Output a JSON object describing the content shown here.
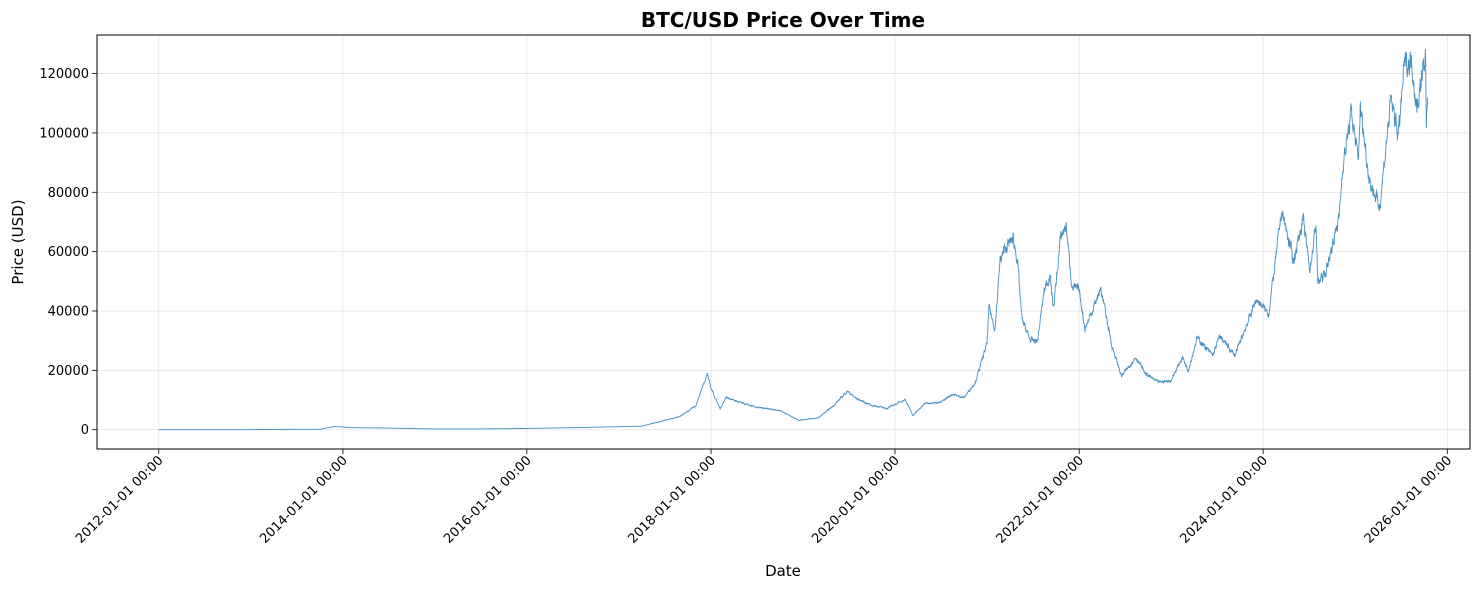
{
  "chart_data": {
    "type": "line",
    "title": "BTC/USD Price Over Time",
    "xlabel": "Date",
    "ylabel": "Price (USD)",
    "grid": true,
    "legend": "none",
    "xlim": [
      "2011-05-01",
      "2026-04-01"
    ],
    "ylim": [
      -6500,
      133000
    ],
    "x_ticks": [
      "2012-01-01 00:00",
      "2014-01-01 00:00",
      "2016-01-01 00:00",
      "2018-01-01 00:00",
      "2020-01-01 00:00",
      "2022-01-01 00:00",
      "2024-01-01 00:00",
      "2026-01-01 00:00"
    ],
    "y_ticks": [
      0,
      20000,
      40000,
      60000,
      80000,
      100000,
      120000
    ],
    "series": [
      {
        "color": "#1f77b4",
        "points": [
          [
            "2012-01-01",
            5
          ],
          [
            "2012-06-01",
            6
          ],
          [
            "2012-12-01",
            13
          ],
          [
            "2013-04-01",
            100
          ],
          [
            "2013-10-01",
            150
          ],
          [
            "2013-12-01",
            1100
          ],
          [
            "2014-02-01",
            700
          ],
          [
            "2014-06-01",
            600
          ],
          [
            "2015-01-01",
            250
          ],
          [
            "2015-06-01",
            250
          ],
          [
            "2016-01-01",
            430
          ],
          [
            "2016-06-01",
            650
          ],
          [
            "2017-01-01",
            1000
          ],
          [
            "2017-04-01",
            1200
          ],
          [
            "2017-06-01",
            2500
          ],
          [
            "2017-09-01",
            4500
          ],
          [
            "2017-11-01",
            8000
          ],
          [
            "2017-12-17",
            19000
          ],
          [
            "2018-01-01",
            14000
          ],
          [
            "2018-02-06",
            7000
          ],
          [
            "2018-03-01",
            11000
          ],
          [
            "2018-05-01",
            9000
          ],
          [
            "2018-07-01",
            7500
          ],
          [
            "2018-10-01",
            6500
          ],
          [
            "2018-12-15",
            3200
          ],
          [
            "2019-03-01",
            3900
          ],
          [
            "2019-05-01",
            8000
          ],
          [
            "2019-06-26",
            13000
          ],
          [
            "2019-08-01",
            10500
          ],
          [
            "2019-10-01",
            8200
          ],
          [
            "2019-12-01",
            7200
          ],
          [
            "2020-02-10",
            10200
          ],
          [
            "2020-03-12",
            4800
          ],
          [
            "2020-05-01",
            9000
          ],
          [
            "2020-07-01",
            9200
          ],
          [
            "2020-08-15",
            12000
          ],
          [
            "2020-10-01",
            10800
          ],
          [
            "2020-11-15",
            16000
          ],
          [
            "2020-12-31",
            29000
          ],
          [
            "2021-01-08",
            41000
          ],
          [
            "2021-02-01",
            34000
          ],
          [
            "2021-02-21",
            57000
          ],
          [
            "2021-03-13",
            61000
          ],
          [
            "2021-04-14",
            64500
          ],
          [
            "2021-05-01",
            57000
          ],
          [
            "2021-05-19",
            37000
          ],
          [
            "2021-06-22",
            30000
          ],
          [
            "2021-07-20",
            30000
          ],
          [
            "2021-08-15",
            47000
          ],
          [
            "2021-09-07",
            52000
          ],
          [
            "2021-09-21",
            41000
          ],
          [
            "2021-10-20",
            65000
          ],
          [
            "2021-11-10",
            69000
          ],
          [
            "2021-12-04",
            48000
          ],
          [
            "2022-01-01",
            47000
          ],
          [
            "2022-01-24",
            34000
          ],
          [
            "2022-03-28",
            47500
          ],
          [
            "2022-05-12",
            28000
          ],
          [
            "2022-06-18",
            18000
          ],
          [
            "2022-08-14",
            24500
          ],
          [
            "2022-09-20",
            19000
          ],
          [
            "2022-11-09",
            16000
          ],
          [
            "2022-12-31",
            16500
          ],
          [
            "2023-02-15",
            24500
          ],
          [
            "2023-03-10",
            20000
          ],
          [
            "2023-04-14",
            31000
          ],
          [
            "2023-06-15",
            25000
          ],
          [
            "2023-07-13",
            31500
          ],
          [
            "2023-09-11",
            25000
          ],
          [
            "2023-10-24",
            34500
          ],
          [
            "2023-12-05",
            44000
          ],
          [
            "2024-01-23",
            39000
          ],
          [
            "2024-02-28",
            63000
          ],
          [
            "2024-03-14",
            73800
          ],
          [
            "2024-05-01",
            57000
          ],
          [
            "2024-06-07",
            71000
          ],
          [
            "2024-07-05",
            54000
          ],
          [
            "2024-07-29",
            69500
          ],
          [
            "2024-08-05",
            49500
          ],
          [
            "2024-09-06",
            53000
          ],
          [
            "2024-10-29",
            72000
          ],
          [
            "2024-11-12",
            89000
          ],
          [
            "2024-12-17",
            107000
          ],
          [
            "2025-01-13",
            90000
          ],
          [
            "2025-01-20",
            109000
          ],
          [
            "2025-02-26",
            84000
          ],
          [
            "2025-04-07",
            75000
          ],
          [
            "2025-05-22",
            111000
          ],
          [
            "2025-06-22",
            99500
          ],
          [
            "2025-07-14",
            123000
          ],
          [
            "2025-08-14",
            124000
          ],
          [
            "2025-09-01",
            108000
          ],
          [
            "2025-10-06",
            126000
          ],
          [
            "2025-10-10",
            104000
          ],
          [
            "2025-10-15",
            112000
          ]
        ]
      }
    ]
  }
}
